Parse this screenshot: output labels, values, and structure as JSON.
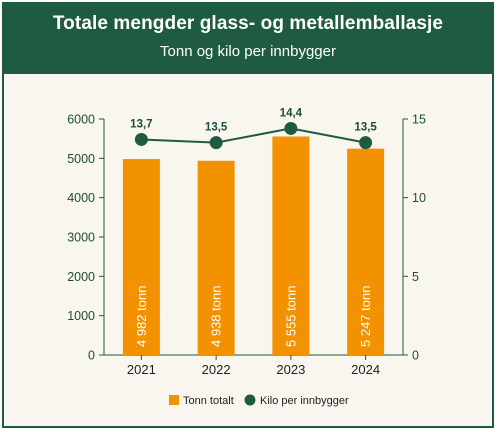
{
  "header": {
    "title": "Totale mengder glass- og metallemballasje",
    "subtitle": "Tonn og kilo per innbygger"
  },
  "colors": {
    "header_bg": "#1e5b40",
    "bar": "#f39200",
    "line": "#1e5b40",
    "background": "#f8f6ee"
  },
  "chart_data": {
    "type": "bar+line",
    "categories": [
      "2021",
      "2022",
      "2023",
      "2024"
    ],
    "series": [
      {
        "name": "Tonn totalt",
        "type": "bar",
        "axis": "left",
        "values": [
          4982,
          4938,
          5555,
          5247
        ],
        "labels": [
          "4 982 tonn",
          "4 938 tonn",
          "5 555 tonn",
          "5 247 tonn"
        ]
      },
      {
        "name": "Kilo per innbygger",
        "type": "line",
        "axis": "right",
        "values": [
          13.7,
          13.5,
          14.4,
          13.5
        ],
        "labels": [
          "13,7",
          "13,5",
          "14,4",
          "13,5"
        ]
      }
    ],
    "y_left": {
      "ylim": [
        0,
        6000
      ],
      "ticks": [
        "0",
        "1000",
        "2000",
        "3000",
        "4000",
        "5000",
        "6000"
      ]
    },
    "y_right": {
      "ylim": [
        0,
        15
      ],
      "ticks": [
        "0",
        "5",
        "10",
        "15"
      ]
    },
    "grid": false,
    "legend_position": "bottom"
  }
}
